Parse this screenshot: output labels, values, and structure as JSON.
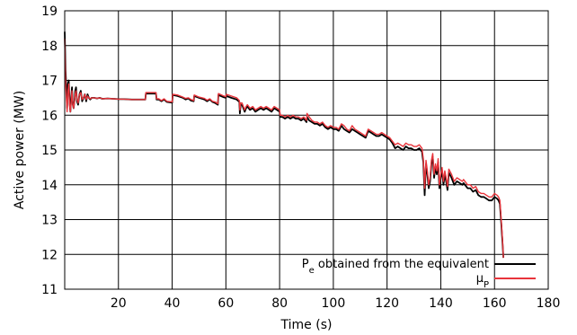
{
  "chart_data": {
    "type": "line",
    "xlabel": "Time (s)",
    "ylabel": "Active power (MW)",
    "xlim": [
      0,
      180
    ],
    "ylim": [
      11,
      19
    ],
    "xticks": [
      20,
      40,
      60,
      80,
      100,
      120,
      140,
      160,
      180
    ],
    "yticks": [
      11,
      12,
      13,
      14,
      15,
      16,
      17,
      18,
      19
    ],
    "grid": true,
    "legend_position": "bottom-right",
    "series": [
      {
        "name": "P_e obtained from the equivalent",
        "color": "#000000",
        "x": [
          0,
          0.3,
          0.6,
          0.9,
          1.2,
          1.5,
          1.8,
          2.1,
          2.4,
          2.7,
          3.0,
          3.3,
          3.6,
          3.9,
          4.2,
          4.6,
          5.0,
          5.5,
          6.0,
          6.5,
          7.0,
          7.5,
          8.0,
          8.5,
          9.0,
          9.5,
          10,
          11,
          12,
          13,
          14,
          16,
          18,
          20,
          22,
          25,
          28,
          30,
          30.2,
          32,
          34,
          34.2,
          35,
          36,
          37,
          38,
          40,
          40.2,
          42,
          44,
          45,
          46,
          47,
          48,
          48.2,
          50,
          52,
          53,
          54,
          55,
          56,
          57,
          57.2,
          59,
          60,
          60.2,
          62,
          64,
          65,
          65.2,
          65.5,
          66,
          67,
          67.5,
          68,
          69,
          70,
          71,
          72,
          73,
          74,
          75,
          76,
          77,
          78,
          79,
          80,
          80.2,
          81,
          82,
          83,
          84,
          85,
          86,
          87,
          88,
          89,
          90,
          90.2,
          91,
          92,
          93,
          94,
          95,
          96,
          97,
          98,
          99,
          100,
          101,
          102,
          103,
          104,
          105,
          106,
          107,
          108,
          109,
          110,
          111,
          112,
          113,
          114,
          115,
          116,
          117,
          118,
          119,
          120,
          121,
          122,
          123,
          124,
          125,
          126,
          127,
          128,
          129,
          130,
          131,
          132,
          133,
          133.5,
          134,
          134.5,
          135,
          135.5,
          136,
          136.5,
          137,
          137.5,
          138,
          138.5,
          139,
          139.5,
          140,
          140.5,
          141,
          141.5,
          142,
          142.5,
          143,
          144,
          145,
          146,
          147,
          148,
          148.5,
          149,
          150,
          151,
          152,
          153,
          154,
          155,
          156,
          157,
          158,
          159,
          160,
          161,
          161.5,
          162,
          162.5,
          163,
          163.3
        ],
        "values": [
          18.4,
          17.3,
          16.8,
          16.2,
          16.9,
          17.0,
          16.4,
          16.1,
          16.5,
          16.8,
          16.3,
          16.2,
          16.4,
          16.7,
          16.8,
          16.4,
          16.3,
          16.6,
          16.7,
          16.4,
          16.5,
          16.6,
          16.4,
          16.6,
          16.5,
          16.45,
          16.5,
          16.5,
          16.48,
          16.5,
          16.47,
          16.48,
          16.47,
          16.46,
          16.46,
          16.45,
          16.45,
          16.45,
          16.62,
          16.62,
          16.62,
          16.45,
          16.45,
          16.4,
          16.45,
          16.38,
          16.36,
          16.58,
          16.55,
          16.5,
          16.45,
          16.48,
          16.42,
          16.4,
          16.55,
          16.5,
          16.45,
          16.4,
          16.45,
          16.38,
          16.35,
          16.3,
          16.58,
          16.52,
          16.5,
          16.55,
          16.5,
          16.45,
          16.38,
          16.05,
          16.3,
          16.3,
          16.1,
          16.2,
          16.25,
          16.15,
          16.2,
          16.1,
          16.15,
          16.2,
          16.15,
          16.2,
          16.15,
          16.1,
          16.2,
          16.15,
          16.1,
          15.95,
          15.95,
          15.9,
          15.95,
          15.9,
          15.95,
          15.9,
          15.9,
          15.85,
          15.9,
          15.8,
          15.95,
          15.85,
          15.8,
          15.75,
          15.75,
          15.7,
          15.75,
          15.65,
          15.6,
          15.65,
          15.6,
          15.6,
          15.55,
          15.7,
          15.6,
          15.55,
          15.5,
          15.6,
          15.55,
          15.5,
          15.45,
          15.4,
          15.35,
          15.55,
          15.5,
          15.45,
          15.4,
          15.4,
          15.45,
          15.4,
          15.35,
          15.3,
          15.2,
          15.05,
          15.1,
          15.05,
          15.0,
          15.1,
          15.05,
          15.05,
          15.0,
          15.0,
          15.05,
          14.95,
          14.65,
          13.7,
          14.6,
          14.3,
          13.9,
          14.1,
          14.6,
          14.8,
          14.2,
          14.5,
          14.3,
          14.65,
          13.9,
          14.2,
          14.4,
          14.0,
          14.3,
          14.1,
          13.85,
          14.35,
          14.2,
          14.0,
          14.1,
          14.05,
          14.0,
          14.05,
          14.0,
          13.9,
          13.9,
          13.8,
          13.85,
          13.7,
          13.65,
          13.65,
          13.6,
          13.55,
          13.55,
          13.65,
          13.6,
          13.55,
          13.45,
          12.9,
          12.3,
          11.9
        ]
      },
      {
        "name": "μP",
        "color": "#e8343b",
        "x": [
          0,
          0.3,
          0.6,
          0.9,
          1.2,
          1.5,
          1.8,
          2.1,
          2.4,
          2.7,
          3.0,
          3.3,
          3.6,
          3.9,
          4.2,
          4.6,
          5.0,
          5.5,
          6.0,
          6.5,
          7.0,
          7.5,
          8.0,
          8.5,
          9.0,
          9.5,
          10,
          11,
          12,
          13,
          14,
          16,
          18,
          20,
          22,
          25,
          28,
          30,
          30.2,
          32,
          34,
          34.2,
          35,
          36,
          37,
          38,
          40,
          40.2,
          42,
          44,
          45,
          46,
          47,
          48,
          48.2,
          50,
          52,
          53,
          54,
          55,
          56,
          57,
          57.2,
          59,
          60,
          60.2,
          62,
          64,
          65,
          65.2,
          65.5,
          66,
          67,
          67.5,
          68,
          69,
          70,
          71,
          72,
          73,
          74,
          75,
          76,
          77,
          78,
          79,
          80,
          80.2,
          81,
          82,
          83,
          84,
          85,
          86,
          87,
          88,
          89,
          90,
          90.2,
          91,
          92,
          93,
          94,
          95,
          96,
          97,
          98,
          99,
          100,
          101,
          102,
          103,
          104,
          105,
          106,
          107,
          108,
          109,
          110,
          111,
          112,
          113,
          114,
          115,
          116,
          117,
          118,
          119,
          120,
          121,
          122,
          123,
          124,
          125,
          126,
          127,
          128,
          129,
          130,
          131,
          132,
          133,
          133.5,
          134,
          134.5,
          135,
          135.5,
          136,
          136.5,
          137,
          137.5,
          138,
          138.5,
          139,
          139.5,
          140,
          140.5,
          141,
          141.5,
          142,
          142.5,
          143,
          144,
          145,
          146,
          147,
          148,
          148.5,
          149,
          150,
          151,
          152,
          153,
          154,
          155,
          156,
          157,
          158,
          159,
          160,
          161,
          161.5,
          162,
          162.5,
          163,
          163.3
        ],
        "values": [
          18.2,
          17.0,
          16.5,
          16.1,
          16.7,
          16.9,
          16.3,
          16.1,
          16.4,
          16.7,
          16.3,
          16.2,
          16.4,
          16.6,
          16.7,
          16.45,
          16.35,
          16.6,
          16.65,
          16.45,
          16.5,
          16.6,
          16.45,
          16.55,
          16.5,
          16.47,
          16.5,
          16.5,
          16.48,
          16.5,
          16.47,
          16.48,
          16.47,
          16.46,
          16.46,
          16.45,
          16.45,
          16.45,
          16.65,
          16.65,
          16.65,
          16.47,
          16.47,
          16.42,
          16.47,
          16.4,
          16.38,
          16.6,
          16.58,
          16.52,
          16.48,
          16.5,
          16.45,
          16.42,
          16.58,
          16.52,
          16.48,
          16.43,
          16.47,
          16.4,
          16.38,
          16.33,
          16.62,
          16.56,
          16.53,
          16.6,
          16.55,
          16.5,
          16.42,
          16.15,
          16.35,
          16.35,
          16.15,
          16.25,
          16.3,
          16.2,
          16.25,
          16.15,
          16.2,
          16.25,
          16.2,
          16.25,
          16.2,
          16.15,
          16.25,
          16.2,
          16.15,
          16.0,
          16.0,
          15.95,
          16.0,
          15.95,
          16.0,
          15.95,
          15.95,
          15.9,
          15.95,
          15.85,
          16.05,
          15.95,
          15.85,
          15.8,
          15.8,
          15.75,
          15.8,
          15.7,
          15.65,
          15.7,
          15.65,
          15.65,
          15.6,
          15.75,
          15.7,
          15.6,
          15.55,
          15.7,
          15.6,
          15.55,
          15.5,
          15.45,
          15.4,
          15.6,
          15.55,
          15.5,
          15.45,
          15.45,
          15.5,
          15.45,
          15.4,
          15.35,
          15.25,
          15.15,
          15.2,
          15.15,
          15.1,
          15.2,
          15.15,
          15.15,
          15.1,
          15.1,
          15.15,
          15.05,
          14.75,
          13.9,
          14.7,
          14.4,
          14.0,
          14.2,
          14.7,
          14.9,
          14.3,
          14.6,
          14.4,
          14.75,
          14.0,
          14.3,
          14.5,
          14.1,
          14.4,
          14.2,
          13.95,
          14.45,
          14.3,
          14.1,
          14.2,
          14.15,
          14.1,
          14.15,
          14.1,
          14.0,
          14.0,
          13.9,
          13.95,
          13.8,
          13.75,
          13.75,
          13.7,
          13.65,
          13.65,
          13.75,
          13.7,
          13.65,
          13.55,
          13.0,
          12.4,
          11.9
        ]
      }
    ]
  }
}
